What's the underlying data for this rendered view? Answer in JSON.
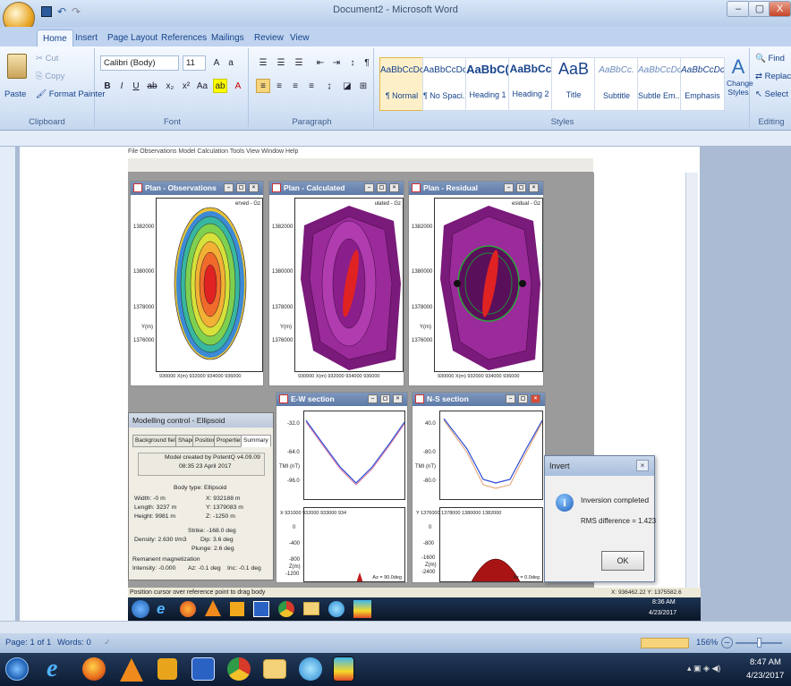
{
  "window": {
    "title": "Document2 - Microsoft Word",
    "minimize": "–",
    "maximize": "▢",
    "close": "X"
  },
  "tabs": [
    "Home",
    "Insert",
    "Page Layout",
    "References",
    "Mailings",
    "Review",
    "View"
  ],
  "clipboard": {
    "paste": "Paste",
    "cut": "Cut",
    "copy": "Copy",
    "format_painter": "Format Painter",
    "label": "Clipboard"
  },
  "font": {
    "name": "Calibri (Body)",
    "size": "11",
    "label": "Font"
  },
  "paragraph": {
    "label": "Paragraph"
  },
  "styles": {
    "label": "Styles",
    "items": [
      {
        "sample": "AaBbCcDc",
        "name": "¶ Normal"
      },
      {
        "sample": "AaBbCcDc",
        "name": "¶ No Spaci..."
      },
      {
        "sample": "AaBbC(",
        "name": "Heading 1"
      },
      {
        "sample": "AaBbCc",
        "name": "Heading 2"
      },
      {
        "sample": "AaB",
        "name": "Title"
      },
      {
        "sample": "AaBbCc.",
        "name": "Subtitle"
      },
      {
        "sample": "AaBbCcDc",
        "name": "Subtle Em..."
      },
      {
        "sample": "AaBbCcDc",
        "name": "Emphasis"
      }
    ],
    "change": "Change Styles"
  },
  "editing": {
    "find": "Find",
    "replace": "Replac",
    "select": "Select",
    "label": "Editing"
  },
  "app": {
    "menu": "File  Observations  Model  Calculation  Tools  View  Window  Help",
    "plots": [
      {
        "title": "Plan - Observations",
        "legend": "erved - Gz"
      },
      {
        "title": "Plan - Calculated",
        "legend": "ulated - Gz"
      },
      {
        "title": "Plan - Residual",
        "legend": "esidual - Gz"
      }
    ],
    "y_ticks": [
      "1382000",
      "1380000",
      "1378000",
      "Y(m)",
      "1376000"
    ],
    "x_ticks": "930000 X(m) 932000    934000    936000",
    "sections": [
      {
        "title": "E-W section",
        "ticks": [
          "-32.0",
          "-64.0",
          "-96.0"
        ],
        "ylabel": "TMI (nT)",
        "xticks": "X     931000   932000   933000   934",
        "dticks": [
          "0",
          "-400",
          "-800",
          "Z(m)",
          "-1200"
        ],
        "note": "Az = 90.0deg"
      },
      {
        "title": "N-S section",
        "ticks": [
          "40.0",
          "-80.0",
          "-80.0"
        ],
        "ylabel": "TMI (nT)",
        "xticks": "Y   1376000  1378000  1380000  1382000",
        "dticks": [
          "0",
          "-800",
          "-1600",
          "Z(m)",
          "-2400"
        ],
        "note": "Az = 0.0deg"
      }
    ],
    "modelling": {
      "title": "Modelling control - Ellipsoid",
      "tabs": [
        "Background field",
        "Shape",
        "Position",
        "Properties",
        "Summary"
      ],
      "created": "Model created by PotentQ v4.09.09",
      "date": "08:35  23 April 2017",
      "body": "Body type: Ellipsoid",
      "width": "Width:   -0 m",
      "length": "Length:  3237 m",
      "height": "Height:  9981 m",
      "x": "X:    932188 m",
      "y": "Y:   1379083 m",
      "z": "Z:     -1250 m",
      "strike": "Strike:    -168.0 deg",
      "dip": "Dip:     3.6 deg",
      "plunge": "Plunge:    2.6 deg",
      "density": "Density:   2.630 t/m3",
      "remanent": "Remanent magnetization",
      "intensity": "Intensity: -0.000",
      "az": "Az: -0.1 deg",
      "inc": "Inc: -0.1 deg"
    },
    "invert": {
      "title": "Invert",
      "line1": "Inversion completed",
      "line2": "RMS difference = 1.423",
      "ok": "OK"
    },
    "status": "Position cursor over reference point to drag body",
    "coords": "X: 936462.22 Y: 1375582.6",
    "inner_time": "8:36 AM",
    "inner_date": "4/23/2017"
  },
  "statusbar": {
    "page": "Page: 1 of 1",
    "words": "Words: 0",
    "zoom": "156%"
  },
  "taskbar": {
    "time": "8:47 AM",
    "date": "4/23/2017"
  }
}
